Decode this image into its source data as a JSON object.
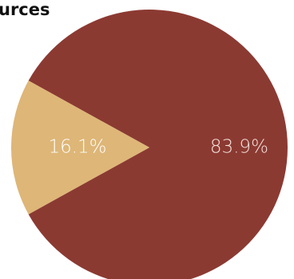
{
  "chart_data": {
    "type": "pie",
    "title": "urces",
    "slices": [
      {
        "label": "83.9%",
        "value": 83.9,
        "color": "#8b3a32",
        "label_color": "#f3e3dc"
      },
      {
        "label": "16.1%",
        "value": 16.1,
        "color": "#deb677",
        "label_color": "#ffffff"
      }
    ],
    "legend": "none"
  }
}
